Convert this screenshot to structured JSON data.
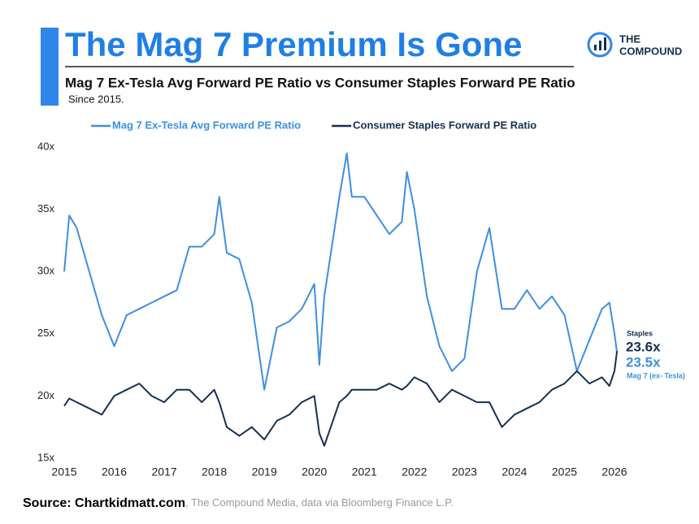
{
  "chart_data": {
    "type": "line",
    "title": "The Mag 7 Premium Is Gone",
    "subtitle": "Mag 7 Ex-Tesla Avg Forward PE Ratio vs Consumer Staples Forward PE Ratio",
    "note": "Since 2015.",
    "logo": {
      "line1": "THE",
      "line2": "COMPOUND"
    },
    "source": {
      "bold": "Source: Chartkidmatt.com",
      "rest": ", The Compound Media, data via Bloomberg Finance L.P."
    },
    "x": [
      2015.0,
      2015.1,
      2015.25,
      2015.5,
      2015.75,
      2016.0,
      2016.25,
      2016.5,
      2016.75,
      2017.0,
      2017.25,
      2017.5,
      2017.75,
      2018.0,
      2018.1,
      2018.25,
      2018.5,
      2018.75,
      2019.0,
      2019.25,
      2019.5,
      2019.75,
      2020.0,
      2020.1,
      2020.2,
      2020.5,
      2020.65,
      2020.75,
      2021.0,
      2021.25,
      2021.5,
      2021.75,
      2021.85,
      2022.0,
      2022.25,
      2022.5,
      2022.75,
      2023.0,
      2023.25,
      2023.5,
      2023.75,
      2024.0,
      2024.25,
      2024.5,
      2024.75,
      2025.0,
      2025.25,
      2025.5,
      2025.75,
      2025.9,
      2026.0,
      2026.05
    ],
    "series": [
      {
        "name": "Mag 7 Ex-Tesla Avg Forward PE Ratio",
        "color": "#3d8fe0",
        "values": [
          30,
          34.5,
          33.5,
          30,
          26.5,
          24,
          26.5,
          27,
          27.5,
          28,
          28.5,
          32,
          32,
          33,
          36,
          31.5,
          31,
          27.5,
          20.5,
          25.5,
          26,
          27,
          29,
          22.5,
          28,
          36,
          39.5,
          36,
          36,
          34.5,
          33,
          34,
          38,
          35,
          28,
          24,
          22,
          23,
          30,
          33.5,
          27,
          27,
          28.5,
          27,
          28,
          26.5,
          22,
          24.5,
          27,
          27.5,
          25,
          23.5
        ]
      },
      {
        "name": "Consumer Staples Forward PE Ratio",
        "color": "#14304f",
        "values": [
          19.2,
          19.8,
          19.5,
          19,
          18.5,
          20,
          20.5,
          21,
          20,
          19.5,
          20.5,
          20.5,
          19.5,
          20.5,
          19.5,
          17.5,
          16.8,
          17.5,
          16.5,
          18,
          18.5,
          19.5,
          20,
          17,
          16,
          19.5,
          20,
          20.5,
          20.5,
          20.5,
          21,
          20.5,
          20.8,
          21.5,
          21,
          19.5,
          20.5,
          20,
          19.5,
          19.5,
          17.5,
          18.5,
          19,
          19.5,
          20.5,
          21,
          22,
          21,
          21.5,
          20.8,
          22,
          23.6
        ]
      }
    ],
    "end_labels": [
      {
        "name": "Staples",
        "value": 23.6,
        "label": "23.6x"
      },
      {
        "name": "Mag 7 (ex- Tesla)",
        "value": 23.5,
        "label": "23.5x"
      }
    ],
    "xlim": [
      2015,
      2026
    ],
    "xticks": [
      2015,
      2016,
      2017,
      2018,
      2019,
      2020,
      2021,
      2022,
      2023,
      2024,
      2025,
      2026
    ],
    "ylim": [
      15,
      40
    ],
    "yticks": [
      {
        "value": 15,
        "label": "15x"
      },
      {
        "value": 20,
        "label": "20x"
      },
      {
        "value": 25,
        "label": "25x"
      },
      {
        "value": 30,
        "label": "30x"
      },
      {
        "value": 35,
        "label": "35x"
      },
      {
        "value": 40,
        "label": "40x"
      }
    ],
    "grid": false
  }
}
